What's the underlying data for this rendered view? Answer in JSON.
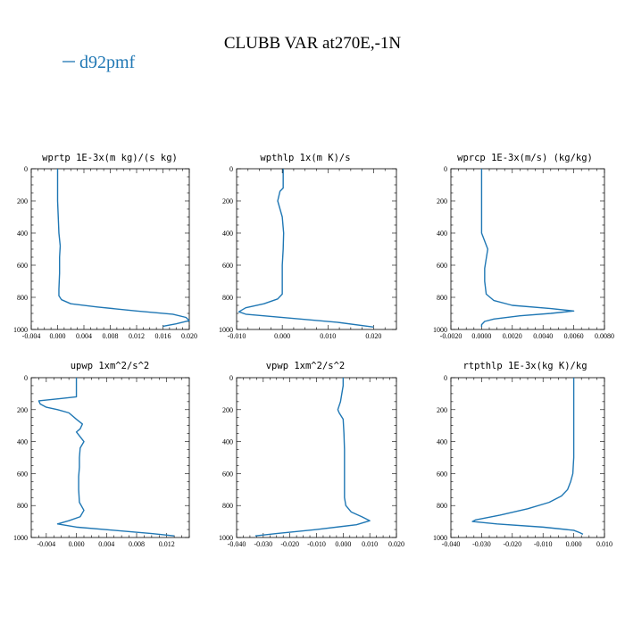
{
  "figure_title": "CLUBB VAR at270E,-1N",
  "legend": {
    "label": "d92pmf",
    "color": "#1f77b4"
  },
  "chart_data": [
    {
      "type": "line",
      "title": "wprtp  1E-3x(m kg)/(s kg)",
      "xlim": [
        -0.004,
        0.02
      ],
      "xticks": [
        "-0.004",
        "0.000",
        "0.004",
        "0.008",
        "0.012",
        "0.016",
        "0.020"
      ],
      "ylim": [
        1000,
        0
      ],
      "yticks": [
        "0",
        "200",
        "400",
        "600",
        "800",
        "1000"
      ],
      "series": [
        {
          "color": "#1f77b4",
          "points": [
            [
              0.0,
              0
            ],
            [
              0.0,
              100
            ],
            [
              0.0,
              200
            ],
            [
              0.0001,
              300
            ],
            [
              0.0002,
              400
            ],
            [
              0.0004,
              480
            ],
            [
              0.0003,
              550
            ],
            [
              0.0003,
              650
            ],
            [
              0.0002,
              750
            ],
            [
              0.0002,
              790
            ],
            [
              0.0006,
              815
            ],
            [
              0.002,
              840
            ],
            [
              0.006,
              860
            ],
            [
              0.012,
              885
            ],
            [
              0.0175,
              905
            ],
            [
              0.0195,
              925
            ],
            [
              0.02,
              945
            ],
            [
              0.018,
              965
            ],
            [
              0.016,
              980
            ]
          ]
        }
      ]
    },
    {
      "type": "line",
      "title": "wpthlp  1x(m K)/s",
      "xlim": [
        -0.01,
        0.025
      ],
      "xticks": [
        "-0.010",
        "0.000",
        "0.010",
        "0.020"
      ],
      "ylim": [
        1000,
        0
      ],
      "yticks": [
        "0",
        "200",
        "400",
        "600",
        "800",
        "1000"
      ],
      "series": [
        {
          "color": "#1f77b4",
          "points": [
            [
              0.0002,
              0
            ],
            [
              0.0002,
              60
            ],
            [
              0.0002,
              120
            ],
            [
              -0.0005,
              140
            ],
            [
              -0.001,
              200
            ],
            [
              -0.0005,
              250
            ],
            [
              0.0,
              300
            ],
            [
              0.0003,
              400
            ],
            [
              0.0002,
              500
            ],
            [
              0.0,
              600
            ],
            [
              0.0,
              700
            ],
            [
              0.0,
              780
            ],
            [
              -0.001,
              810
            ],
            [
              -0.004,
              840
            ],
            [
              -0.008,
              865
            ],
            [
              -0.0095,
              890
            ],
            [
              -0.008,
              905
            ],
            [
              0.002,
              930
            ],
            [
              0.012,
              955
            ],
            [
              0.02,
              985
            ]
          ]
        }
      ]
    },
    {
      "type": "line",
      "title": "wprcp  1E-3x(m/s) (kg/kg)",
      "xlim": [
        -0.002,
        0.008
      ],
      "xticks": [
        "-0.0020",
        "0.0000",
        "0.0020",
        "0.0040",
        "0.0060",
        "0.0080"
      ],
      "ylim": [
        1000,
        0
      ],
      "yticks": [
        "0",
        "200",
        "400",
        "600",
        "800",
        "1000"
      ],
      "series": [
        {
          "color": "#1f77b4",
          "points": [
            [
              0.0,
              0
            ],
            [
              0.0,
              100
            ],
            [
              0.0,
              200
            ],
            [
              0.0,
              300
            ],
            [
              0.0,
              400
            ],
            [
              0.0002,
              450
            ],
            [
              0.0004,
              500
            ],
            [
              0.0003,
              560
            ],
            [
              0.0002,
              620
            ],
            [
              0.0002,
              700
            ],
            [
              0.0003,
              780
            ],
            [
              0.0008,
              820
            ],
            [
              0.002,
              850
            ],
            [
              0.0045,
              870
            ],
            [
              0.006,
              885
            ],
            [
              0.0045,
              900
            ],
            [
              0.0025,
              915
            ],
            [
              0.0008,
              935
            ],
            [
              0.0002,
              950
            ],
            [
              0.0,
              970
            ],
            [
              0.0,
              985
            ]
          ]
        }
      ]
    },
    {
      "type": "line",
      "title": "upwp  1xm^2/s^2",
      "xlim": [
        -0.006,
        0.015
      ],
      "xticks": [
        "-0.004",
        "0.000",
        "0.004",
        "0.008",
        "0.012"
      ],
      "ylim": [
        1000,
        0
      ],
      "yticks": [
        "0",
        "200",
        "400",
        "600",
        "800",
        "1000"
      ],
      "series": [
        {
          "color": "#1f77b4",
          "points": [
            [
              0.0,
              0
            ],
            [
              0.0,
              60
            ],
            [
              0.0,
              120
            ],
            [
              -0.002,
              130
            ],
            [
              -0.005,
              145
            ],
            [
              -0.0048,
              165
            ],
            [
              -0.004,
              185
            ],
            [
              -0.0025,
              200
            ],
            [
              -0.001,
              220
            ],
            [
              0.0,
              260
            ],
            [
              0.0008,
              290
            ],
            [
              0.0005,
              320
            ],
            [
              0.0,
              340
            ],
            [
              0.0005,
              370
            ],
            [
              0.001,
              400
            ],
            [
              0.0005,
              440
            ],
            [
              0.0004,
              500
            ],
            [
              0.0004,
              560
            ],
            [
              0.0003,
              620
            ],
            [
              0.0003,
              700
            ],
            [
              0.0004,
              780
            ],
            [
              0.001,
              830
            ],
            [
              0.0005,
              870
            ],
            [
              -0.001,
              895
            ],
            [
              -0.0025,
              915
            ],
            [
              0.0,
              935
            ],
            [
              0.005,
              955
            ],
            [
              0.01,
              975
            ],
            [
              0.013,
              990
            ]
          ]
        }
      ]
    },
    {
      "type": "line",
      "title": "vpwp  1xm^2/s^2",
      "xlim": [
        -0.04,
        0.02
      ],
      "xticks": [
        "-0.040",
        "-0.030",
        "-0.020",
        "-0.010",
        "0.000",
        "0.010",
        "0.020"
      ],
      "ylim": [
        1000,
        0
      ],
      "yticks": [
        "0",
        "200",
        "400",
        "600",
        "800",
        "1000"
      ],
      "series": [
        {
          "color": "#1f77b4",
          "points": [
            [
              0.0,
              0
            ],
            [
              0.0,
              50
            ],
            [
              -0.0005,
              100
            ],
            [
              -0.001,
              150
            ],
            [
              -0.002,
              200
            ],
            [
              -0.0015,
              220
            ],
            [
              0.0,
              260
            ],
            [
              0.0003,
              350
            ],
            [
              0.0005,
              450
            ],
            [
              0.0005,
              550
            ],
            [
              0.0005,
              650
            ],
            [
              0.0005,
              750
            ],
            [
              0.001,
              800
            ],
            [
              0.003,
              840
            ],
            [
              0.007,
              870
            ],
            [
              0.01,
              895
            ],
            [
              0.005,
              920
            ],
            [
              -0.01,
              950
            ],
            [
              -0.025,
              975
            ],
            [
              -0.033,
              990
            ]
          ]
        }
      ]
    },
    {
      "type": "line",
      "title": "rtpthlp  1E-3x(kg K)/kg",
      "xlim": [
        -0.04,
        0.01
      ],
      "xticks": [
        "-0.040",
        "-0.030",
        "-0.020",
        "-0.010",
        "0.000",
        "0.010"
      ],
      "ylim": [
        1000,
        0
      ],
      "yticks": [
        "0",
        "200",
        "400",
        "600",
        "800",
        "1000"
      ],
      "series": [
        {
          "color": "#1f77b4",
          "points": [
            [
              0.0,
              0
            ],
            [
              0.0,
              100
            ],
            [
              0.0,
              200
            ],
            [
              0.0,
              300
            ],
            [
              0.0,
              400
            ],
            [
              0.0,
              500
            ],
            [
              -0.0003,
              600
            ],
            [
              -0.001,
              650
            ],
            [
              -0.002,
              700
            ],
            [
              -0.004,
              740
            ],
            [
              -0.008,
              780
            ],
            [
              -0.015,
              820
            ],
            [
              -0.024,
              860
            ],
            [
              -0.032,
              890
            ],
            [
              -0.033,
              900
            ],
            [
              -0.025,
              915
            ],
            [
              -0.01,
              935
            ],
            [
              0.0,
              955
            ],
            [
              0.002,
              970
            ],
            [
              0.003,
              980
            ]
          ]
        }
      ]
    }
  ]
}
